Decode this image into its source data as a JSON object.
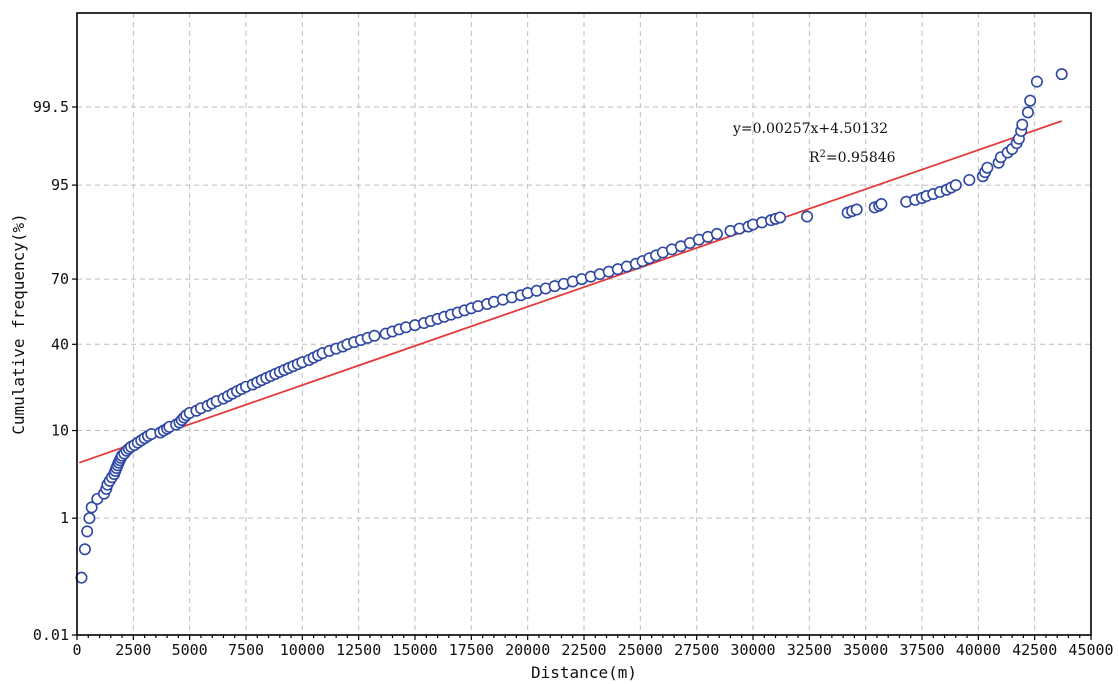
{
  "chart_data": {
    "type": "scatter",
    "xlabel": "Distance(m)",
    "ylabel": "Cumulative frequency(%)",
    "xlim": [
      0,
      45000
    ],
    "y_scale": "probability",
    "x_ticks": [
      0,
      2500,
      5000,
      7500,
      10000,
      12500,
      15000,
      17500,
      20000,
      22500,
      25000,
      27500,
      30000,
      32500,
      35000,
      37500,
      40000,
      42500,
      45000
    ],
    "y_ticks": [
      {
        "value": 0.01,
        "label": "0.01"
      },
      {
        "value": 1,
        "label": "1"
      },
      {
        "value": 10,
        "label": "10"
      },
      {
        "value": 40,
        "label": "40"
      },
      {
        "value": 70,
        "label": "70"
      },
      {
        "value": 95,
        "label": "95"
      },
      {
        "value": 99.5,
        "label": "99.5"
      }
    ],
    "grid": true,
    "fit": {
      "equation": "y=0.00257x+4.50132",
      "r2_prefix": "R",
      "r2_sup": "2",
      "r2_value": "=0.95846",
      "x_start": 100,
      "x_end": 43700,
      "y_start": 4.8,
      "y_end": 99.2,
      "color": "#e43a3a"
    },
    "series": [
      {
        "marker_color": "#2e47a3",
        "x": [
          200,
          350,
          450,
          550,
          650,
          900,
          1200,
          1300,
          1350,
          1450,
          1550,
          1650,
          1700,
          1750,
          1800,
          1850,
          1900,
          1950,
          2000,
          2100,
          2200,
          2300,
          2400,
          2550,
          2700,
          2850,
          3000,
          3150,
          3300,
          3700,
          3850,
          4000,
          4100,
          4400,
          4550,
          4650,
          4750,
          4850,
          5000,
          5300,
          5500,
          5800,
          6000,
          6200,
          6500,
          6700,
          6900,
          7100,
          7300,
          7500,
          7800,
          8000,
          8200,
          8400,
          8600,
          8800,
          9000,
          9200,
          9400,
          9600,
          9800,
          10000,
          10300,
          10500,
          10700,
          10900,
          11200,
          11500,
          11800,
          12000,
          12300,
          12600,
          12900,
          13200,
          13700,
          14000,
          14300,
          14600,
          15000,
          15400,
          15700,
          16000,
          16300,
          16600,
          16900,
          17200,
          17500,
          17800,
          18200,
          18500,
          18900,
          19300,
          19700,
          20000,
          20400,
          20800,
          21200,
          21600,
          22000,
          22400,
          22800,
          23200,
          23600,
          24000,
          24400,
          24800,
          25100,
          25400,
          25700,
          26000,
          26400,
          26800,
          27200,
          27600,
          28000,
          28400,
          29000,
          29400,
          29800,
          30000,
          30400,
          30800,
          31000,
          31200,
          32400,
          34200,
          34400,
          34600,
          35400,
          35600,
          35700,
          36800,
          37200,
          37500,
          37700,
          38000,
          38300,
          38600,
          38800,
          39000,
          39600,
          40200,
          40300,
          40400,
          40900,
          41000,
          41300,
          41500,
          41700,
          41800,
          41900,
          41950,
          42200,
          42300,
          42600,
          43700
        ],
        "y": [
          0.12,
          0.35,
          0.65,
          1.0,
          1.4,
          1.8,
          2.1,
          2.4,
          2.7,
          3.0,
          3.3,
          3.6,
          3.9,
          4.2,
          4.5,
          4.8,
          5.1,
          5.4,
          5.7,
          6.0,
          6.4,
          6.7,
          7.0,
          7.3,
          7.7,
          8.1,
          8.5,
          8.9,
          9.3,
          9.6,
          10.0,
          10.4,
          10.8,
          11.3,
          11.8,
          12.4,
          13.0,
          13.6,
          14.2,
          14.8,
          15.5,
          16.2,
          16.9,
          17.6,
          18.4,
          19.2,
          20.0,
          20.8,
          21.6,
          22.4,
          23.2,
          24.0,
          24.8,
          25.6,
          26.4,
          27.2,
          28.0,
          28.8,
          29.6,
          30.4,
          31.2,
          32.0,
          33.0,
          34.0,
          35.0,
          36.0,
          37.0,
          38.0,
          39.0,
          40.0,
          41.0,
          42.0,
          43.0,
          44.0,
          45.0,
          46.0,
          47.0,
          48.0,
          49.0,
          50.0,
          51.0,
          52.0,
          53.0,
          54.0,
          55.0,
          56.0,
          57.0,
          58.0,
          59.0,
          60.0,
          61.0,
          62.0,
          63.0,
          64.0,
          65.0,
          66.0,
          67.0,
          68.0,
          69.0,
          70.0,
          71.0,
          72.0,
          73.0,
          74.0,
          75.0,
          76.0,
          77.0,
          78.0,
          79.0,
          80.0,
          81.0,
          82.0,
          83.0,
          84.0,
          84.8,
          85.6,
          86.4,
          87.0,
          87.5,
          88.0,
          88.5,
          89.0,
          89.3,
          89.6,
          89.8,
          90.6,
          90.9,
          91.2,
          91.6,
          91.9,
          92.2,
          92.6,
          92.9,
          93.2,
          93.5,
          93.8,
          94.1,
          94.4,
          94.7,
          95.0,
          95.6,
          96.0,
          96.4,
          96.8,
          97.2,
          97.6,
          97.9,
          98.1,
          98.4,
          98.6,
          98.9,
          99.1,
          99.4,
          99.6,
          99.8,
          99.85
        ]
      }
    ]
  }
}
